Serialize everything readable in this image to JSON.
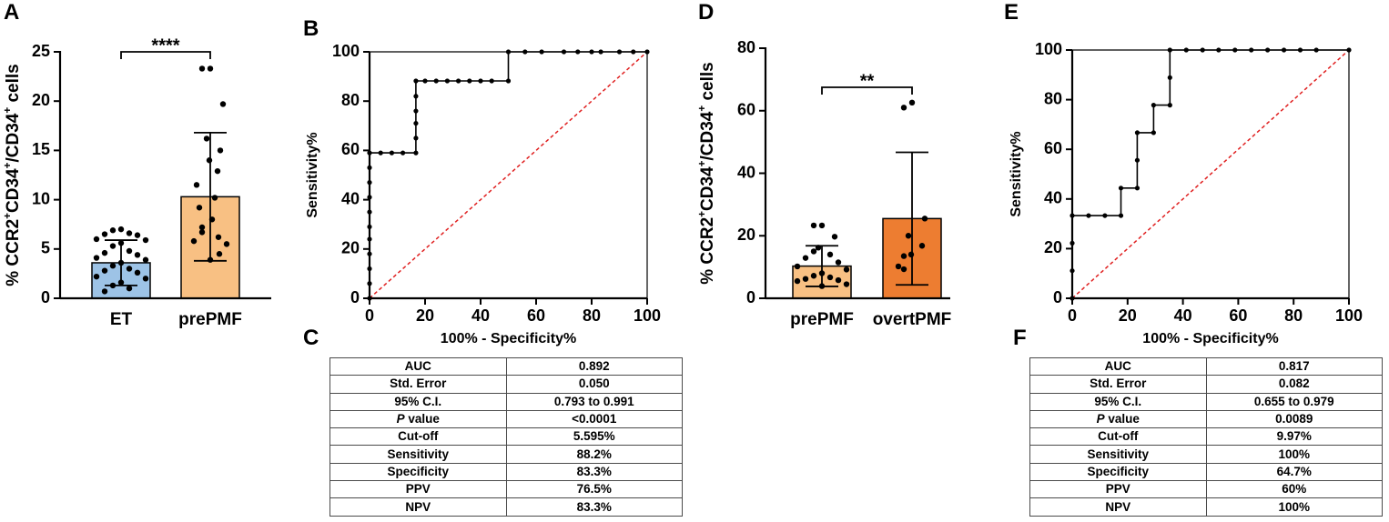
{
  "panel_labels": {
    "A": "A",
    "B": "B",
    "C": "C",
    "D": "D",
    "E": "E",
    "F": "F"
  },
  "colors": {
    "et": "#9dc3e6",
    "prepmf": "#f8c083",
    "overtpmf": "#ed7d31",
    "reference": "#e02020",
    "axis": "#000000"
  },
  "chart_data": [
    {
      "id": "A",
      "type": "bar",
      "ylabel": "% CCR2⁺CD34⁺/CD34⁺ cells",
      "ylim": [
        0,
        25
      ],
      "yticks": [
        0,
        5,
        10,
        15,
        20,
        25
      ],
      "categories": [
        "ET",
        "prePMF"
      ],
      "values": [
        3.6,
        10.3
      ],
      "sd": [
        2.3,
        6.5
      ],
      "points": [
        [
          7.0,
          6.9,
          6.6,
          6.5,
          6.4,
          6.0,
          5.9,
          5.6,
          5.3,
          4.8,
          4.6,
          4.4,
          4.1,
          3.9,
          3.6,
          3.3,
          3.0,
          2.8,
          2.6,
          2.2,
          2.0,
          1.6,
          1.3,
          1.0,
          0.7
        ],
        [
          23.3,
          23.3,
          19.7,
          16.2,
          15.0,
          14.0,
          12.9,
          11.5,
          10.2,
          9.2,
          8.0,
          7.2,
          6.7,
          6.2,
          5.8,
          5.5,
          4.5,
          3.9
        ]
      ],
      "significance": "****"
    },
    {
      "id": "B",
      "type": "line",
      "xlabel": "100% - Specificity%",
      "ylabel": "Sensitivity%",
      "xlim": [
        0,
        100
      ],
      "ylim": [
        0,
        100
      ],
      "xticks": [
        0,
        20,
        40,
        60,
        80,
        100
      ],
      "yticks": [
        0,
        20,
        40,
        60,
        80,
        100
      ],
      "series": [
        {
          "name": "ROC",
          "x": [
            0,
            0,
            0,
            0,
            0,
            0,
            0,
            0,
            0,
            0,
            0,
            4,
            8,
            12,
            16.7,
            16.7,
            16.7,
            16.7,
            16.7,
            16.7,
            20,
            24,
            28,
            32,
            36,
            40,
            44,
            50,
            50,
            56,
            62,
            70,
            75,
            80,
            83.3,
            90,
            95,
            100
          ],
          "y": [
            0,
            6,
            12,
            18,
            24,
            29,
            35,
            41,
            47,
            53,
            59,
            59,
            59,
            59,
            59,
            65,
            71,
            76,
            82,
            88.2,
            88.2,
            88.2,
            88.2,
            88.2,
            88.2,
            88.2,
            88.2,
            88.2,
            100,
            100,
            100,
            100,
            100,
            100,
            100,
            100,
            100,
            100
          ]
        },
        {
          "name": "Reference",
          "x": [
            0,
            100
          ],
          "y": [
            0,
            100
          ]
        }
      ]
    },
    {
      "id": "D",
      "type": "bar",
      "ylabel": "% CCR2⁺CD34⁺/CD34⁺ cells",
      "ylim": [
        0,
        80
      ],
      "yticks": [
        0,
        20,
        40,
        60,
        80
      ],
      "categories": [
        "prePMF",
        "overtPMF"
      ],
      "values": [
        10.3,
        25.5
      ],
      "sd": [
        6.5,
        21.2
      ],
      "points": [
        [
          23.3,
          23.3,
          19.7,
          16.2,
          15.0,
          14.0,
          12.9,
          11.5,
          10.2,
          9.2,
          8.0,
          7.2,
          6.7,
          6.2,
          5.8,
          5.5,
          4.5,
          3.9
        ],
        [
          62.6,
          61.0,
          25.5,
          20.0,
          16.8,
          14.0,
          13.5,
          10.2,
          9.3
        ]
      ],
      "significance": "**"
    },
    {
      "id": "E",
      "type": "line",
      "xlabel": "100% - Specificity%",
      "ylabel": "Sensitivity%",
      "xlim": [
        0,
        100
      ],
      "ylim": [
        0,
        100
      ],
      "xticks": [
        0,
        20,
        40,
        60,
        80,
        100
      ],
      "yticks": [
        0,
        20,
        40,
        60,
        80,
        100
      ],
      "series": [
        {
          "name": "ROC",
          "x": [
            0,
            0,
            0,
            0,
            5.9,
            11.8,
            17.6,
            17.6,
            23.5,
            23.5,
            23.5,
            29.4,
            29.4,
            35.3,
            35.3,
            35.3,
            41.2,
            47.1,
            52.9,
            58.8,
            64.7,
            70.6,
            76.5,
            82.4,
            88.2,
            100
          ],
          "y": [
            0,
            11.1,
            22.2,
            33.3,
            33.3,
            33.3,
            33.3,
            44.4,
            44.4,
            55.6,
            66.7,
            66.7,
            77.8,
            77.8,
            88.9,
            100,
            100,
            100,
            100,
            100,
            100,
            100,
            100,
            100,
            100,
            100
          ]
        },
        {
          "name": "Reference",
          "x": [
            0,
            100
          ],
          "y": [
            0,
            100
          ]
        }
      ]
    }
  ],
  "tables": {
    "C": [
      [
        "AUC",
        "0.892"
      ],
      [
        "Std. Error",
        "0.050"
      ],
      [
        "95% C.I.",
        "0.793 to 0.991"
      ],
      [
        "P value",
        "<0.0001"
      ],
      [
        "Cut-off",
        "5.595%"
      ],
      [
        "Sensitivity",
        "88.2%"
      ],
      [
        "Specificity",
        "83.3%"
      ],
      [
        "PPV",
        "76.5%"
      ],
      [
        "NPV",
        "83.3%"
      ]
    ],
    "F": [
      [
        "AUC",
        "0.817"
      ],
      [
        "Std. Error",
        "0.082"
      ],
      [
        "95% C.I.",
        "0.655 to 0.979"
      ],
      [
        "P value",
        "0.0089"
      ],
      [
        "Cut-off",
        "9.97%"
      ],
      [
        "Sensitivity",
        "100%"
      ],
      [
        "Specificity",
        "64.7%"
      ],
      [
        "PPV",
        "60%"
      ],
      [
        "NPV",
        "100%"
      ]
    ]
  }
}
